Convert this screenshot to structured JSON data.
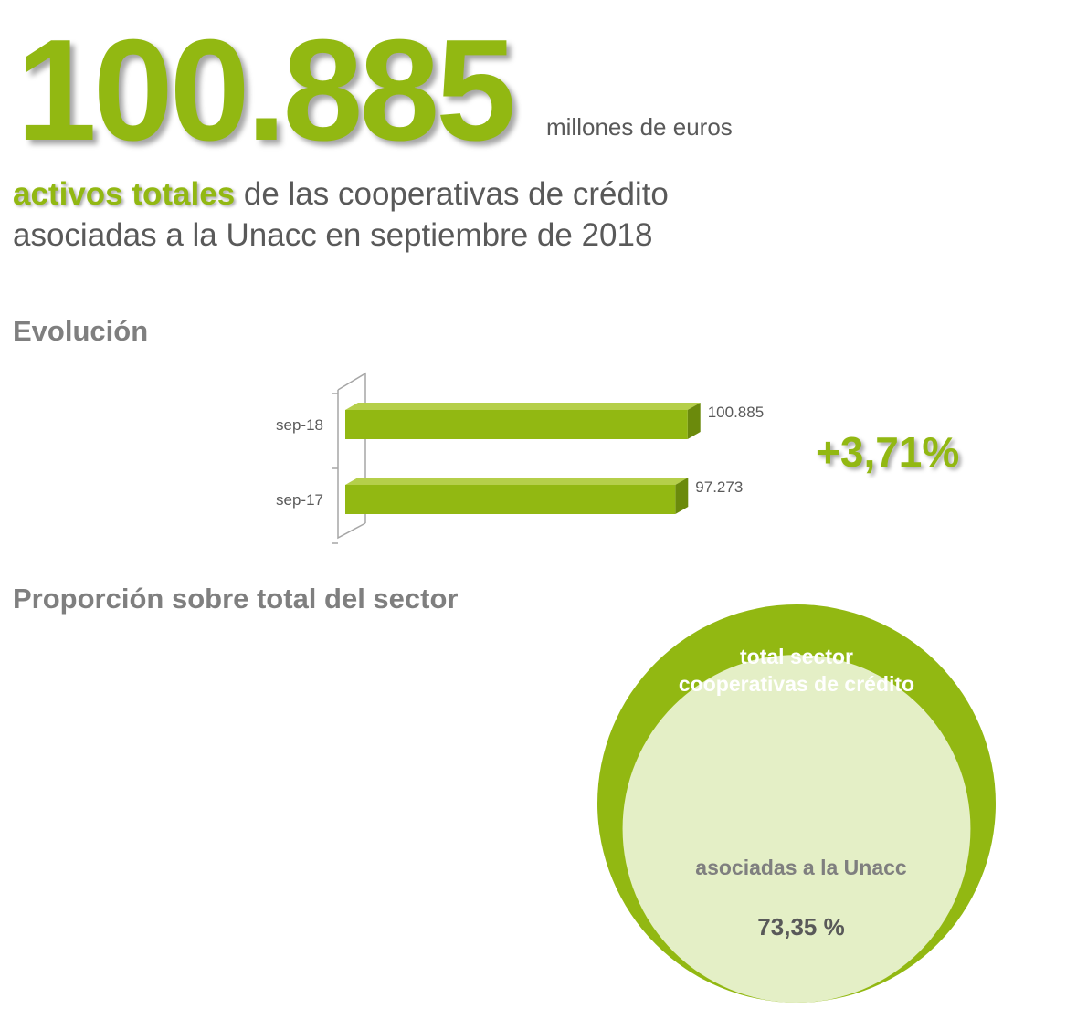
{
  "headline": {
    "value": "100.885",
    "unit": "millones de euros",
    "highlight": "activos totales",
    "line1_rest": " de las cooperativas de crédito",
    "line2": "asociadas a la Unacc en septiembre de 2018"
  },
  "evolucion": {
    "title": "Evolución",
    "change": "+3,71%"
  },
  "proporcion": {
    "title": "Proporción sobre total del sector"
  },
  "colors": {
    "accent": "#92b812",
    "accent_dark": "#6b8a0c",
    "inner_circle": "#e4efc6",
    "text_gray": "#595959"
  },
  "chart_data": [
    {
      "type": "bar",
      "orientation": "horizontal",
      "title": "Evolución",
      "categories": [
        "sep-18",
        "sep-17"
      ],
      "values": [
        100885,
        97273
      ],
      "value_labels": [
        "100.885",
        "97.273"
      ],
      "unit": "millones de euros",
      "grid": false,
      "legend": "none"
    },
    {
      "type": "pie",
      "style": "nested-circles",
      "title": "Proporción sobre total del sector",
      "outer_label_line1": "total sector",
      "outer_label_line2": "cooperativas de crédito",
      "inner_label": "asociadas a la Unacc",
      "inner_value": 73.35,
      "inner_value_label": "73,35 %"
    }
  ]
}
